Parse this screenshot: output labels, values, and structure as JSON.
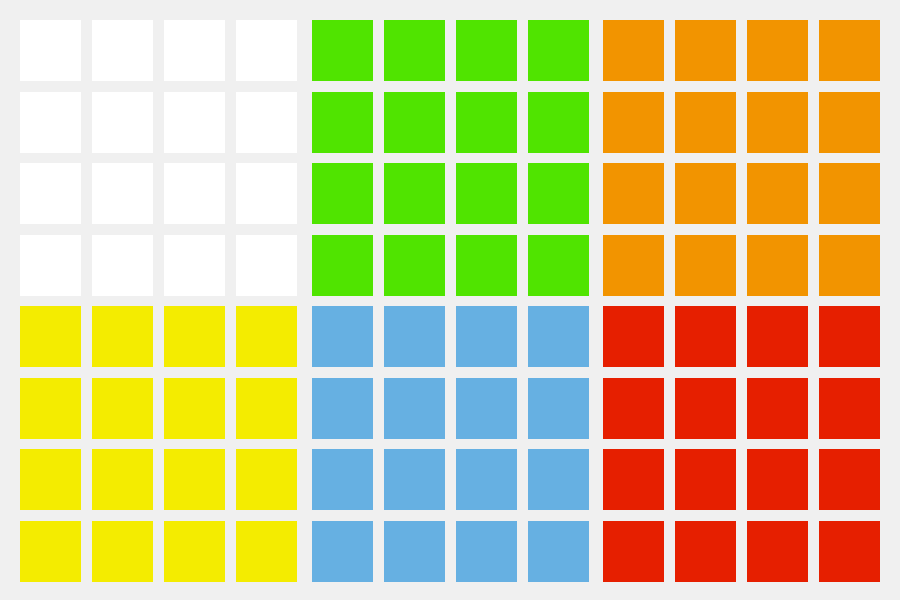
{
  "board": {
    "rows": 4,
    "columns": 4,
    "faces": [
      {
        "color": "#ffffff"
      },
      {
        "color": "#50e400"
      },
      {
        "color": "#f29400"
      },
      {
        "color": "#f4ec00"
      },
      {
        "color": "#66b0e2"
      },
      {
        "color": "#e61f00"
      }
    ]
  }
}
